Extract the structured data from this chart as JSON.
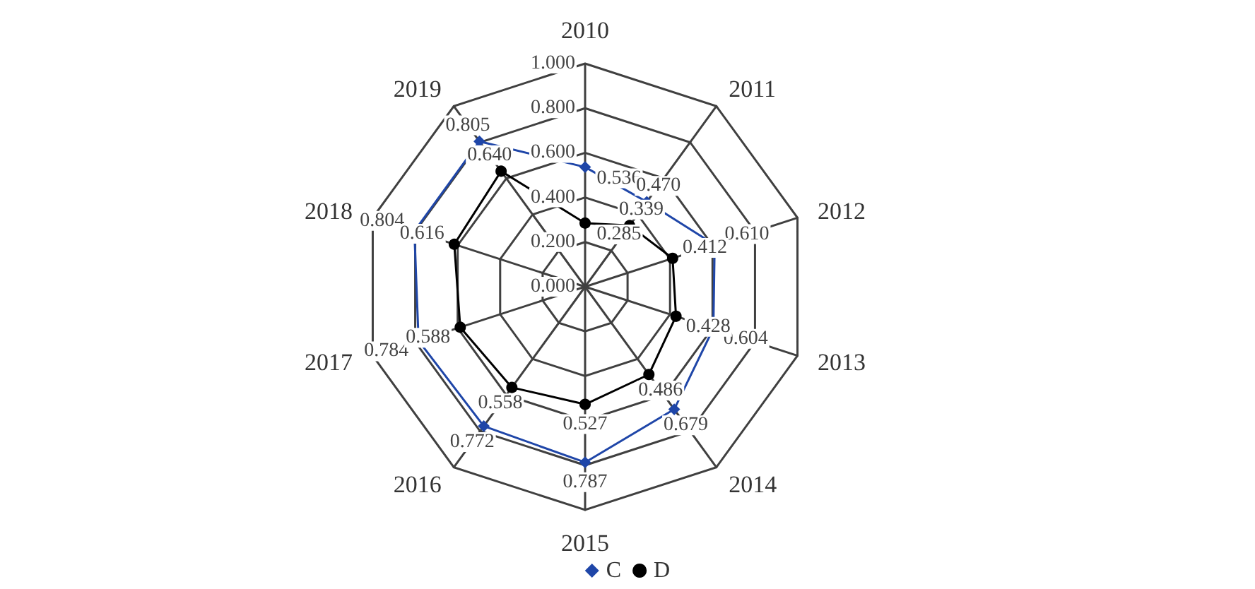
{
  "chart_data": {
    "type": "radar",
    "categories": [
      "2010",
      "2011",
      "2012",
      "2013",
      "2014",
      "2015",
      "2016",
      "2017",
      "2018",
      "2019"
    ],
    "series": [
      {
        "name": "C",
        "color": "#1f46a8",
        "marker": "diamond",
        "values": [
          0.536,
          0.47,
          0.61,
          0.604,
          0.679,
          0.787,
          0.772,
          0.784,
          0.804,
          0.805
        ],
        "value_labels": [
          "0.536",
          "0.470",
          "0.610",
          "0.604",
          "0.679",
          "0.787",
          "0.772",
          "0.784",
          "0.804",
          "0.805"
        ]
      },
      {
        "name": "D",
        "color": "#000000",
        "marker": "circle",
        "values": [
          0.285,
          0.339,
          0.412,
          0.428,
          0.486,
          0.527,
          0.558,
          0.588,
          0.616,
          0.64
        ],
        "value_labels": [
          "0.285",
          "0.339",
          "0.412",
          "0.428",
          "0.486",
          "0.527",
          "0.558",
          "0.588",
          "0.616",
          "0.640"
        ]
      }
    ],
    "ylim": [
      0,
      1
    ],
    "yticks": [
      {
        "value": 0,
        "label": "0.000"
      },
      {
        "value": 0.2,
        "label": "0.200"
      },
      {
        "value": 0.4,
        "label": "0.400"
      },
      {
        "value": 0.6,
        "label": "0.600"
      },
      {
        "value": 0.8,
        "label": "0.800"
      },
      {
        "value": 1,
        "label": "1.000"
      }
    ],
    "legend": "bottom",
    "grid": true
  }
}
